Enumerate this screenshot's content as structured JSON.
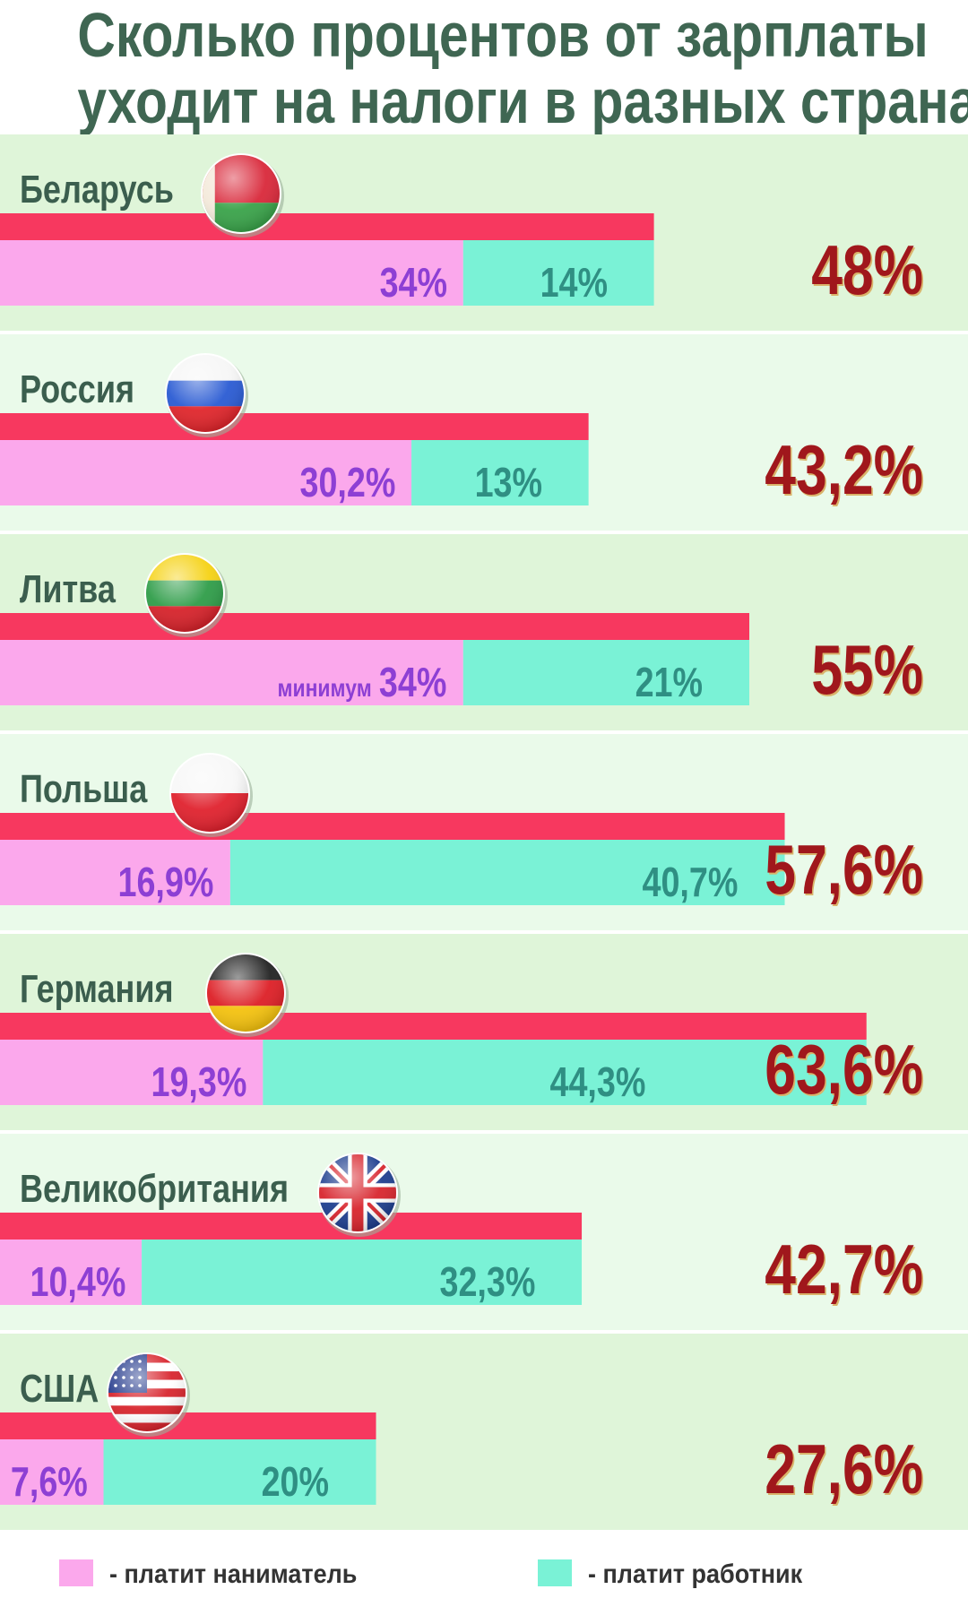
{
  "title": {
    "line1": "Сколько процентов от зарплаты",
    "line2": "уходит на налоги в разных странах"
  },
  "chart_data": {
    "type": "bar",
    "stacked": true,
    "orientation": "horizontal",
    "title": "Сколько процентов от зарплаты уходит на налоги в разных странах",
    "categories": [
      "Беларусь",
      "Россия",
      "Литва",
      "Польша",
      "Германия",
      "Великобритания",
      "США"
    ],
    "series": [
      {
        "name": "- платит наниматель",
        "values": [
          34,
          30.2,
          34,
          16.9,
          19.3,
          10.4,
          7.6
        ],
        "labels": [
          "34%",
          "30,2%",
          "34%",
          "16,9%",
          "19,3%",
          "10,4%",
          "7,6%"
        ],
        "color": "#fba8ec"
      },
      {
        "name": "- платит работник",
        "values": [
          14,
          13,
          21,
          40.7,
          44.3,
          32.3,
          20
        ],
        "labels": [
          "14%",
          "13%",
          "21%",
          "40,7%",
          "44,3%",
          "32,3%",
          "20%"
        ],
        "color": "#7af2d6"
      }
    ],
    "totals": [
      48,
      43.2,
      55,
      57.6,
      63.6,
      42.7,
      27.6
    ],
    "total_labels": [
      "48%",
      "43,2%",
      "55%",
      "57,6%",
      "63,6%",
      "42,7%",
      "27,6%"
    ],
    "notes": [
      "",
      "",
      "минимум",
      "",
      "",
      "",
      ""
    ],
    "flags": [
      "belarus-flag-icon",
      "russia-flag-icon",
      "lithuania-flag-icon",
      "poland-flag-icon",
      "germany-flag-icon",
      "uk-flag-icon",
      "usa-flag-icon"
    ],
    "total_bar_color": "#f7385f",
    "row_bg_colors": [
      "#dff5d9",
      "#eafaea"
    ],
    "legend_position": "bottom"
  },
  "legend": {
    "employer_label": "- платит наниматель",
    "worker_label": "- платит работник"
  }
}
